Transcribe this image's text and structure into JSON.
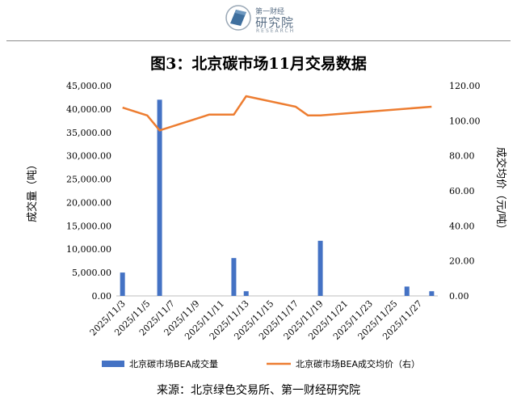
{
  "header": {
    "logo_text_top": "第一财经",
    "logo_text_main": "研究院",
    "logo_text_sub": "RESEARCH"
  },
  "title": "图3：北京碳市场11月交易数据",
  "source": "来源：北京绿色交易所、第一财经研究院",
  "chart_data": {
    "type": "bar+line",
    "title": "图3：北京碳市场11月交易数据",
    "ylabel_left": "成交量（吨）",
    "ylabel_right": "成交均价（元/吨）",
    "ylim_left": [
      0,
      45000
    ],
    "ylim_right": [
      0,
      120
    ],
    "yticks_left": [
      "0.00",
      "5,000.00",
      "10,000.00",
      "15,000.00",
      "20,000.00",
      "25,000.00",
      "30,000.00",
      "35,000.00",
      "40,000.00",
      "45,000.00"
    ],
    "yticks_right": [
      "0.00",
      "20.00",
      "40.00",
      "60.00",
      "80.00",
      "100.00",
      "120.00"
    ],
    "x": [
      "2025/11/3",
      "2025/11/4",
      "2025/11/5",
      "2025/11/6",
      "2025/11/7",
      "2025/11/8",
      "2025/11/9",
      "2025/11/10",
      "2025/11/11",
      "2025/11/12",
      "2025/11/13",
      "2025/11/14",
      "2025/11/15",
      "2025/11/16",
      "2025/11/17",
      "2025/11/18",
      "2025/11/19",
      "2025/11/20",
      "2025/11/21",
      "2025/11/22",
      "2025/11/23",
      "2025/11/24",
      "2025/11/25",
      "2025/11/26",
      "2025/11/27",
      "2025/11/28"
    ],
    "xtick_labels": [
      "2025/11/3",
      "2025/11/5",
      "2025/11/7",
      "2025/11/9",
      "2025/11/11",
      "2025/11/13",
      "2025/11/15",
      "2025/11/17",
      "2025/11/19",
      "2025/11/21",
      "2025/11/23",
      "2025/11/25",
      "2025/11/27"
    ],
    "series": [
      {
        "name": "北京碳市场BEA成交量",
        "type": "bar",
        "axis": "left",
        "color": "#4472C4",
        "points": [
          {
            "x": "2025/11/3",
            "y": 5000
          },
          {
            "x": "2025/11/6",
            "y": 42000
          },
          {
            "x": "2025/11/12",
            "y": 8100
          },
          {
            "x": "2025/11/13",
            "y": 1000
          },
          {
            "x": "2025/11/19",
            "y": 11800
          },
          {
            "x": "2025/11/26",
            "y": 2000
          },
          {
            "x": "2025/11/28",
            "y": 1000
          }
        ]
      },
      {
        "name": "北京碳市场BEA成交均价（右）",
        "type": "line",
        "axis": "right",
        "color": "#ED7D31",
        "points": [
          {
            "x": "2025/11/3",
            "y": 107.5
          },
          {
            "x": "2025/11/5",
            "y": 103.0
          },
          {
            "x": "2025/11/6",
            "y": 94.5
          },
          {
            "x": "2025/11/10",
            "y": 103.5
          },
          {
            "x": "2025/11/12",
            "y": 103.5
          },
          {
            "x": "2025/11/13",
            "y": 114.0
          },
          {
            "x": "2025/11/17",
            "y": 108.0
          },
          {
            "x": "2025/11/18",
            "y": 103.0
          },
          {
            "x": "2025/11/19",
            "y": 103.0
          },
          {
            "x": "2025/11/28",
            "y": 108.0
          }
        ]
      }
    ],
    "legend_position": "bottom",
    "grid": false
  }
}
